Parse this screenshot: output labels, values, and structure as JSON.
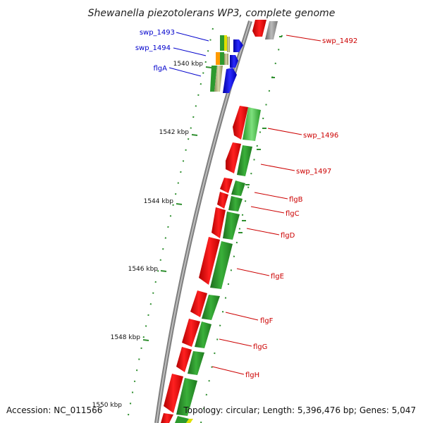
{
  "title": "Shewanella piezotolerans WP3, complete genome",
  "footer": {
    "accession": "Accession: NC_011566",
    "topology": "Topology: circular; Length: 5,396,476 bp; Genes: 5,047"
  },
  "ruler": [
    {
      "label": "1540 kbp"
    },
    {
      "label": "1542 kbp"
    },
    {
      "label": "1544 kbp"
    },
    {
      "label": "1546 kbp"
    },
    {
      "label": "1548 kbp"
    },
    {
      "label": "1550 kbp"
    }
  ],
  "genes_left": [
    {
      "name": "swp_1493",
      "color": "#0000cc"
    },
    {
      "name": "swp_1494",
      "color": "#0000cc"
    },
    {
      "name": "flgA",
      "color": "#0000cc"
    }
  ],
  "genes_right": [
    {
      "name": "swp_1492",
      "color": "#cc0000"
    },
    {
      "name": "swp_1496",
      "color": "#cc0000"
    },
    {
      "name": "swp_1497",
      "color": "#cc0000"
    },
    {
      "name": "flgB",
      "color": "#cc0000"
    },
    {
      "name": "flgC",
      "color": "#cc0000"
    },
    {
      "name": "flgD",
      "color": "#cc0000"
    },
    {
      "name": "flgE",
      "color": "#cc0000"
    },
    {
      "name": "flgF",
      "color": "#cc0000"
    },
    {
      "name": "flgG",
      "color": "#cc0000"
    },
    {
      "name": "flgH",
      "color": "#cc0000"
    }
  ],
  "colors": {
    "forward_gene": "#ee1111",
    "reverse_gene": "#1111ee",
    "cds_feature": "#2e9a2e",
    "backbone": "#888888",
    "ruler_tick": "#2f8f2f"
  }
}
